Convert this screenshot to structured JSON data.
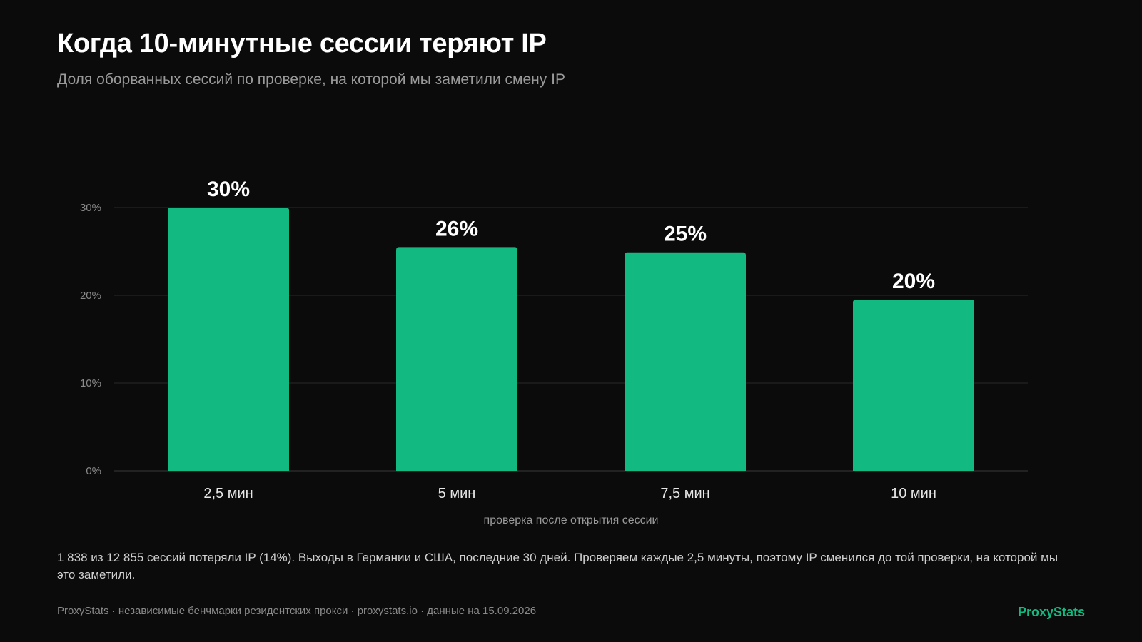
{
  "header": {
    "title": "Когда 10-минутные сессии теряют IP",
    "subtitle": "Доля оборванных сессий по проверке, на которой мы заметили смену IP"
  },
  "chart_data": {
    "type": "bar",
    "categories": [
      "2,5 мин",
      "5 мин",
      "7,5 мин",
      "10 мин"
    ],
    "values": [
      30,
      25.5,
      24.9,
      19.5
    ],
    "value_labels": [
      "30%",
      "26%",
      "25%",
      "20%"
    ],
    "xlabel": "проверка после открытия сессии",
    "ylabel": "",
    "ylim": [
      0,
      30
    ],
    "yticks": [
      0,
      10,
      20,
      30
    ],
    "ytick_labels": [
      "0%",
      "10%",
      "20%",
      "30%"
    ],
    "grid": true,
    "bar_color": "#12b981"
  },
  "note": "1 838 из 12 855 сессий потеряли IP (14%). Выходы в Германии и США, последние 30 дней. Проверяем каждые 2,5 минуты, поэтому IP сменился до той проверки, на которой мы это заметили.",
  "footer": {
    "text": "ProxyStats · независимые бенчмарки резидентских прокси · proxystats.io · данные на 15.09.2026",
    "brand": "ProxyStats"
  },
  "colors": {
    "background": "#0b0b0b",
    "accent": "#12b981",
    "grid": "#2a2a2a",
    "muted_text": "#9a9a9a"
  }
}
